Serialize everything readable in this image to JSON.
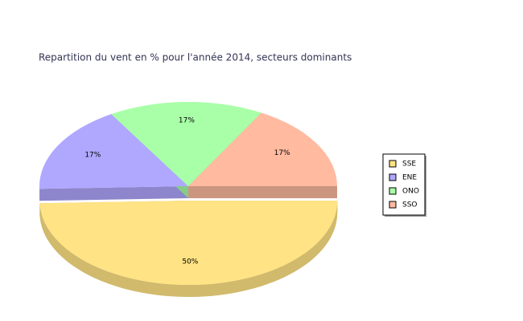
{
  "chart_data": {
    "type": "pie",
    "title": "Repartition du vent en % pour l'année 2014, secteurs dominants",
    "categories": [
      "SSE",
      "ENE",
      "ONO",
      "SSO"
    ],
    "values": [
      50,
      17,
      17,
      17
    ],
    "value_labels": [
      "50%",
      "17%",
      "17%",
      "17%"
    ],
    "colors": [
      "#ffe384",
      "#b0a8ff",
      "#a8ffa8",
      "#ffbaa0"
    ],
    "legend": "right"
  }
}
